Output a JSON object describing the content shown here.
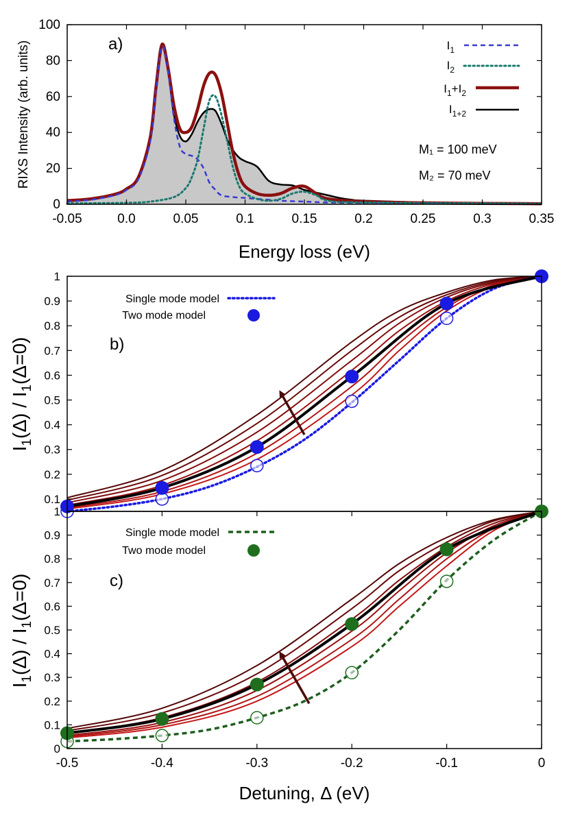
{
  "chart_data": [
    {
      "type": "line",
      "panel_label": "a)",
      "xlabel": "Energy loss (eV)",
      "ylabel": "RIXS Intensity (arb. units)",
      "xlim": [
        -0.05,
        0.35
      ],
      "ylim": [
        0,
        100
      ],
      "xticks": [
        "-0.05",
        "0.0",
        "0.05",
        "0.1",
        "0.15",
        "0.2",
        "0.25",
        "0.3",
        "0.35"
      ],
      "yticks": [
        "0",
        "20",
        "40",
        "60",
        "80",
        "100"
      ],
      "legend_position": "top-right",
      "annotations": [
        "M₁ = 100 meV",
        "M₂ = 70 meV"
      ],
      "series": [
        {
          "name": "I₁",
          "style": "dashed",
          "color": "#3a3ad0",
          "x": [
            -0.05,
            -0.03,
            -0.01,
            0.0,
            0.01,
            0.02,
            0.025,
            0.03,
            0.035,
            0.04,
            0.045,
            0.05,
            0.055,
            0.06,
            0.065,
            0.07,
            0.075,
            0.08,
            0.09,
            0.1,
            0.11,
            0.12,
            0.13,
            0.15,
            0.17,
            0.2,
            0.25,
            0.3,
            0.35
          ],
          "y": [
            1.5,
            2.5,
            5,
            8,
            14,
            35,
            65,
            88,
            75,
            48,
            32,
            28,
            27,
            25,
            20,
            12,
            8,
            5,
            4,
            3.5,
            3,
            2.5,
            2,
            1.5,
            1,
            0.8,
            0.5,
            0.3,
            0.2
          ]
        },
        {
          "name": "I₂",
          "style": "dotted",
          "color": "#1a7a6e",
          "x": [
            -0.05,
            0.0,
            0.02,
            0.04,
            0.05,
            0.055,
            0.06,
            0.065,
            0.07,
            0.075,
            0.08,
            0.085,
            0.09,
            0.095,
            0.1,
            0.11,
            0.12,
            0.13,
            0.14,
            0.15,
            0.16,
            0.17,
            0.2,
            0.35
          ],
          "y": [
            0.5,
            0.8,
            1.5,
            4,
            9,
            15,
            25,
            42,
            58,
            60,
            50,
            35,
            20,
            10,
            6,
            3,
            2,
            3,
            6,
            7,
            5,
            2,
            1,
            0.3
          ]
        },
        {
          "name": "I₁+I₂",
          "style": "solid-thick",
          "color": "#8b1010",
          "x": [
            -0.05,
            -0.03,
            -0.01,
            0.0,
            0.01,
            0.02,
            0.025,
            0.03,
            0.035,
            0.04,
            0.045,
            0.05,
            0.055,
            0.06,
            0.065,
            0.07,
            0.075,
            0.08,
            0.085,
            0.09,
            0.095,
            0.1,
            0.11,
            0.12,
            0.13,
            0.14,
            0.15,
            0.16,
            0.17,
            0.2,
            0.25,
            0.3,
            0.35
          ],
          "y": [
            2,
            3,
            5.5,
            8.5,
            15,
            37,
            66,
            89,
            76,
            55,
            42,
            40,
            43,
            53,
            66,
            73,
            72,
            62,
            45,
            28,
            16,
            10,
            6,
            5,
            6,
            9,
            10,
            6,
            3,
            1.5,
            0.8,
            0.5,
            0.3
          ]
        },
        {
          "name": "I₁₊₂",
          "style": "solid",
          "color": "#000000",
          "fill": "#c8c8c8",
          "x": [
            -0.05,
            -0.03,
            -0.01,
            0.0,
            0.01,
            0.02,
            0.025,
            0.03,
            0.035,
            0.04,
            0.045,
            0.05,
            0.055,
            0.06,
            0.065,
            0.07,
            0.075,
            0.08,
            0.085,
            0.09,
            0.095,
            0.1,
            0.11,
            0.12,
            0.13,
            0.14,
            0.15,
            0.16,
            0.17,
            0.18,
            0.19,
            0.2,
            0.25,
            0.3,
            0.35
          ],
          "y": [
            2,
            3,
            5.5,
            8.5,
            15,
            37,
            66,
            88,
            74,
            50,
            38,
            35,
            39,
            46,
            51,
            53,
            52,
            45,
            36,
            30,
            26,
            24,
            21,
            13,
            11,
            10.5,
            8,
            6.5,
            5,
            3.5,
            2.5,
            2,
            1,
            0.5,
            0.3
          ]
        }
      ]
    },
    {
      "type": "line",
      "panel_label": "b)",
      "xlabel": "",
      "ylabel": "I₁(Δ) / I₁(Δ=0)",
      "xlim": [
        -0.5,
        0
      ],
      "ylim": [
        0.05,
        1.0
      ],
      "yticks": [
        "0.1",
        "0.2",
        "0.3",
        "0.4",
        "0.5",
        "0.6",
        "0.7",
        "0.8",
        "0.9",
        "1"
      ],
      "legend_position": "top-left",
      "legend": [
        {
          "name": "Single mode model",
          "style": "dotted",
          "color": "#1a1ae0"
        },
        {
          "name": "Two mode model",
          "style": "marker",
          "color": "#1a1ae0"
        }
      ],
      "arrow": {
        "from": [
          -0.25,
          0.36
        ],
        "to": [
          -0.275,
          0.53
        ],
        "color": "#4a0a0a"
      },
      "single_mode": {
        "x": [
          -0.5,
          -0.45,
          -0.4,
          -0.35,
          -0.3,
          -0.25,
          -0.2,
          -0.15,
          -0.1,
          -0.05,
          0
        ],
        "y": [
          0.05,
          0.07,
          0.1,
          0.15,
          0.23,
          0.34,
          0.49,
          0.66,
          0.83,
          0.95,
          1.0
        ]
      },
      "single_mode_points": {
        "x": [
          -0.5,
          -0.4,
          -0.3,
          -0.2,
          -0.1,
          0
        ],
        "y": [
          0.05,
          0.1,
          0.235,
          0.495,
          0.83,
          1.0
        ]
      },
      "two_mode_points": {
        "x": [
          -0.5,
          -0.4,
          -0.3,
          -0.2,
          -0.1,
          0
        ],
        "y": [
          0.07,
          0.145,
          0.31,
          0.595,
          0.89,
          1.0
        ]
      },
      "two_mode_curve": {
        "x": [
          -0.5,
          -0.4,
          -0.3,
          -0.2,
          -0.1,
          0
        ],
        "y": [
          0.07,
          0.145,
          0.31,
          0.595,
          0.89,
          1.0
        ]
      },
      "family": [
        {
          "x": [
            -0.5,
            -0.4,
            -0.3,
            -0.2,
            -0.15,
            -0.1,
            -0.05,
            0
          ],
          "y": [
            0.06,
            0.12,
            0.26,
            0.52,
            0.7,
            0.86,
            0.96,
            1.0
          ]
        },
        {
          "x": [
            -0.5,
            -0.4,
            -0.3,
            -0.2,
            -0.15,
            -0.1,
            -0.05,
            0
          ],
          "y": [
            0.065,
            0.13,
            0.285,
            0.555,
            0.73,
            0.875,
            0.965,
            1.0
          ]
        },
        {
          "x": [
            -0.5,
            -0.4,
            -0.3,
            -0.2,
            -0.15,
            -0.1,
            -0.05,
            0
          ],
          "y": [
            0.075,
            0.155,
            0.335,
            0.62,
            0.78,
            0.9,
            0.97,
            1.0
          ]
        },
        {
          "x": [
            -0.5,
            -0.4,
            -0.3,
            -0.2,
            -0.15,
            -0.1,
            -0.05,
            0
          ],
          "y": [
            0.085,
            0.175,
            0.37,
            0.66,
            0.81,
            0.915,
            0.975,
            1.0
          ]
        },
        {
          "x": [
            -0.5,
            -0.4,
            -0.3,
            -0.2,
            -0.15,
            -0.1,
            -0.05,
            0
          ],
          "y": [
            0.095,
            0.195,
            0.405,
            0.7,
            0.835,
            0.925,
            0.98,
            1.0
          ]
        },
        {
          "x": [
            -0.5,
            -0.4,
            -0.3,
            -0.2,
            -0.15,
            -0.1,
            -0.05,
            0
          ],
          "y": [
            0.105,
            0.215,
            0.44,
            0.735,
            0.86,
            0.935,
            0.985,
            1.0
          ]
        }
      ]
    },
    {
      "type": "line",
      "panel_label": "c)",
      "xlabel": "Detuning, Δ (eV)",
      "ylabel": "I₁(Δ) / I₁(Δ=0)",
      "xlim": [
        -0.5,
        0
      ],
      "ylim": [
        0,
        1.0
      ],
      "xticks": [
        "-0.5",
        "-0.4",
        "-0.3",
        "-0.2",
        "-0.1",
        "0"
      ],
      "yticks": [
        "0",
        "0.1",
        "0.2",
        "0.3",
        "0.4",
        "0.5",
        "0.6",
        "0.7",
        "0.8",
        "0.9",
        "1"
      ],
      "legend_position": "top-left",
      "legend": [
        {
          "name": "Single mode model",
          "style": "dashed",
          "color": "#1e5e1e"
        },
        {
          "name": "Two mode model",
          "style": "marker",
          "color": "#1e6e1e"
        }
      ],
      "arrow": {
        "from": [
          -0.245,
          0.19
        ],
        "to": [
          -0.275,
          0.4
        ],
        "color": "#4a0a0a"
      },
      "single_mode": {
        "x": [
          -0.5,
          -0.45,
          -0.4,
          -0.35,
          -0.3,
          -0.25,
          -0.2,
          -0.15,
          -0.1,
          -0.05,
          0
        ],
        "y": [
          0.03,
          0.04,
          0.055,
          0.08,
          0.13,
          0.2,
          0.32,
          0.5,
          0.71,
          0.88,
          1.0
        ]
      },
      "single_mode_points": {
        "x": [
          -0.5,
          -0.4,
          -0.3,
          -0.2,
          -0.1,
          0
        ],
        "y": [
          0.03,
          0.055,
          0.13,
          0.32,
          0.705,
          1.0
        ]
      },
      "two_mode_points": {
        "x": [
          -0.5,
          -0.4,
          -0.3,
          -0.2,
          -0.1,
          0
        ],
        "y": [
          0.065,
          0.125,
          0.27,
          0.525,
          0.84,
          1.0
        ]
      },
      "two_mode_curve": {
        "x": [
          -0.5,
          -0.4,
          -0.3,
          -0.2,
          -0.1,
          0
        ],
        "y": [
          0.065,
          0.125,
          0.27,
          0.525,
          0.84,
          1.0
        ]
      },
      "family": [
        {
          "x": [
            -0.5,
            -0.4,
            -0.3,
            -0.2,
            -0.15,
            -0.1,
            -0.05,
            0
          ],
          "y": [
            0.045,
            0.09,
            0.2,
            0.43,
            0.6,
            0.77,
            0.92,
            1.0
          ]
        },
        {
          "x": [
            -0.5,
            -0.4,
            -0.3,
            -0.2,
            -0.15,
            -0.1,
            -0.05,
            0
          ],
          "y": [
            0.05,
            0.1,
            0.22,
            0.46,
            0.63,
            0.8,
            0.93,
            1.0
          ]
        },
        {
          "x": [
            -0.5,
            -0.4,
            -0.3,
            -0.2,
            -0.15,
            -0.1,
            -0.05,
            0
          ],
          "y": [
            0.055,
            0.11,
            0.245,
            0.495,
            0.665,
            0.825,
            0.94,
            1.0
          ]
        },
        {
          "x": [
            -0.5,
            -0.4,
            -0.3,
            -0.2,
            -0.15,
            -0.1,
            -0.05,
            0
          ],
          "y": [
            0.065,
            0.13,
            0.28,
            0.545,
            0.71,
            0.85,
            0.95,
            1.0
          ]
        },
        {
          "x": [
            -0.5,
            -0.4,
            -0.3,
            -0.2,
            -0.15,
            -0.1,
            -0.05,
            0
          ],
          "y": [
            0.075,
            0.15,
            0.315,
            0.59,
            0.75,
            0.87,
            0.96,
            1.0
          ]
        },
        {
          "x": [
            -0.5,
            -0.4,
            -0.3,
            -0.2,
            -0.15,
            -0.1,
            -0.05,
            0
          ],
          "y": [
            0.085,
            0.17,
            0.35,
            0.63,
            0.78,
            0.89,
            0.965,
            1.0
          ]
        }
      ]
    }
  ]
}
